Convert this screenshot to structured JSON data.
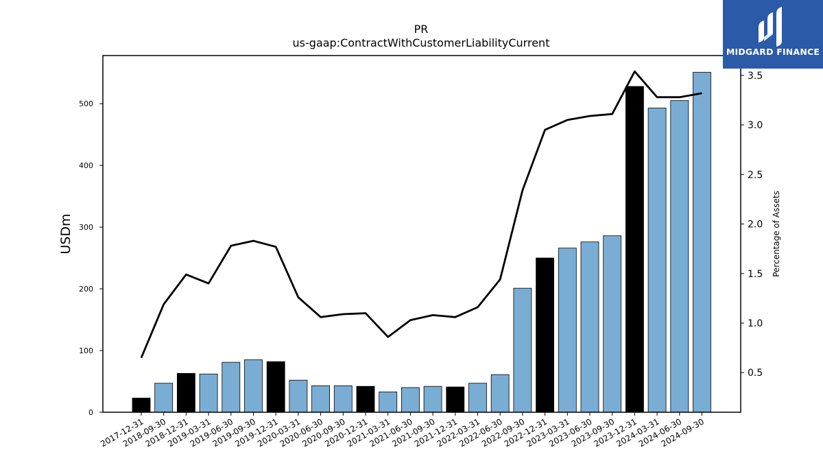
{
  "chart_data": {
    "type": "bar",
    "title": "PR",
    "subtitle": "us-gaap:ContractWithCustomerLiabilityCurrent",
    "ylabel": "USDm",
    "y2label": "Percentage of Assets",
    "ylim": [
      0,
      578
    ],
    "y2lim": [
      0.1,
      3.7
    ],
    "yticks": [
      0,
      100,
      200,
      300,
      400,
      500
    ],
    "y2ticks": [
      0.5,
      1.0,
      1.5,
      2.0,
      2.5,
      3.0,
      3.5
    ],
    "categories": [
      "2017-12-31",
      "2018-09-30",
      "2018-12-31",
      "2019-03-31",
      "2019-06-30",
      "2019-09-30",
      "2019-12-31",
      "2020-03-31",
      "2020-06-30",
      "2020-09-30",
      "2020-12-31",
      "2021-03-31",
      "2021-06-30",
      "2021-09-30",
      "2021-12-31",
      "2022-03-31",
      "2022-06-30",
      "2022-09-30",
      "2022-12-31",
      "2023-03-31",
      "2023-06-30",
      "2023-09-30",
      "2023-12-31",
      "2024-03-31",
      "2024-06-30",
      "2024-09-30"
    ],
    "series": [
      {
        "kind": "bar",
        "values": [
          23,
          47,
          63,
          62,
          81,
          85,
          82,
          52,
          43,
          43,
          42,
          33,
          40,
          42,
          41,
          47,
          61,
          201,
          250,
          266,
          276,
          286,
          528,
          493,
          505,
          551
        ],
        "year_end": [
          true,
          false,
          true,
          false,
          false,
          false,
          true,
          false,
          false,
          false,
          true,
          false,
          false,
          false,
          true,
          false,
          false,
          false,
          true,
          false,
          false,
          false,
          true,
          false,
          false,
          false
        ]
      },
      {
        "kind": "line",
        "axis": "right",
        "values": [
          0.65,
          1.19,
          1.49,
          1.4,
          1.78,
          1.83,
          1.77,
          1.26,
          1.06,
          1.09,
          1.1,
          0.86,
          1.03,
          1.08,
          1.06,
          1.16,
          1.44,
          2.34,
          2.95,
          3.05,
          3.09,
          3.11,
          3.54,
          3.28,
          3.28,
          3.32
        ]
      }
    ],
    "colors": {
      "bar": "#7aadd3",
      "bar_year_end": "#000000",
      "line": "#000000",
      "bar_edge": "#000000"
    },
    "grid": false,
    "legend": "none"
  },
  "logo": {
    "text": "MIDGARD FINANCE",
    "background": "#2b5aa8"
  }
}
